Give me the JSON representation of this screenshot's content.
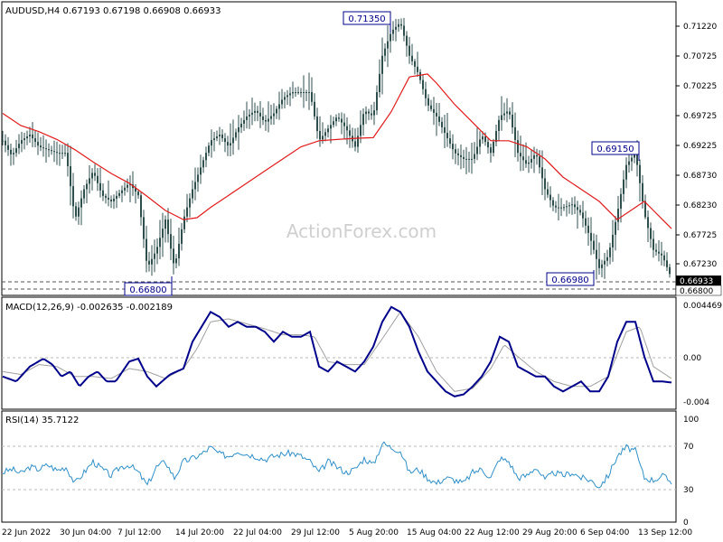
{
  "main": {
    "symbol_label": "AUDUSD,H4",
    "ohlc": "0.67193 0.67198 0.66908 0.66933",
    "watermark": "ActionForex.com",
    "price_ticks": [
      "0.71220",
      "0.70725",
      "0.70225",
      "0.69725",
      "0.69225",
      "0.68730",
      "0.68230",
      "0.67725",
      "0.67230"
    ],
    "current_price": "0.66933",
    "support_price": "0.66800",
    "annotations": [
      "0.71350",
      "0.69150",
      "0.66980",
      "0.66800"
    ],
    "colors": {
      "bars": "#2f4f4f",
      "ma": "#e01b1b",
      "box": "#00008b",
      "grid": "#b8b8b8"
    }
  },
  "macd_panel": {
    "label": "MACD(12,26,9) -0.002635 -0.002189",
    "ticks": [
      "0.004469",
      "0.00",
      "-0.004"
    ],
    "colors": {
      "macd": "#00008b",
      "signal": "#a0a0a0"
    }
  },
  "rsi_panel": {
    "label": "RSI(14) 35.7122",
    "ticks": [
      "100",
      "70",
      "30",
      "0"
    ],
    "color": "#2f8fc8"
  },
  "time_axis": [
    "22 Jun 2022",
    "30 Jun 04:00",
    "7 Jul 12:00",
    "14 Jul 20:00",
    "22 Jul 04:00",
    "29 Jul 12:00",
    "5 Aug 20:00",
    "15 Aug 04:00",
    "22 Aug 12:00",
    "29 Aug 20:00",
    "6 Sep 04:00",
    "13 Sep 12:00"
  ],
  "chart_data": [
    {
      "type": "candlestick",
      "title": "AUDUSD,H4",
      "ylim": [
        0.6668,
        0.714
      ],
      "price_path": [
        [
          0,
          0.692
        ],
        [
          10,
          0.6895
        ],
        [
          20,
          0.692
        ],
        [
          30,
          0.693
        ],
        [
          40,
          0.691
        ],
        [
          50,
          0.6905
        ],
        [
          60,
          0.69
        ],
        [
          70,
          0.69
        ],
        [
          80,
          0.679
        ],
        [
          90,
          0.684
        ],
        [
          100,
          0.687
        ],
        [
          110,
          0.683
        ],
        [
          120,
          0.682
        ],
        [
          130,
          0.6835
        ],
        [
          140,
          0.685
        ],
        [
          150,
          0.683
        ],
        [
          160,
          0.671
        ],
        [
          170,
          0.674
        ],
        [
          180,
          0.679
        ],
        [
          190,
          0.671
        ],
        [
          200,
          0.679
        ],
        [
          210,
          0.684
        ],
        [
          220,
          0.688
        ],
        [
          230,
          0.692
        ],
        [
          240,
          0.693
        ],
        [
          250,
          0.691
        ],
        [
          260,
          0.694
        ],
        [
          270,
          0.696
        ],
        [
          280,
          0.697
        ],
        [
          290,
          0.695
        ],
        [
          300,
          0.6965
        ],
        [
          310,
          0.699
        ],
        [
          320,
          0.7
        ],
        [
          330,
          0.7
        ],
        [
          340,
          0.7
        ],
        [
          350,
          0.692
        ],
        [
          360,
          0.694
        ],
        [
          370,
          0.696
        ],
        [
          380,
          0.694
        ],
        [
          390,
          0.691
        ],
        [
          400,
          0.697
        ],
        [
          410,
          0.696
        ],
        [
          420,
          0.706
        ],
        [
          430,
          0.71
        ],
        [
          440,
          0.7115
        ],
        [
          450,
          0.706
        ],
        [
          460,
          0.703
        ],
        [
          470,
          0.698
        ],
        [
          480,
          0.696
        ],
        [
          490,
          0.693
        ],
        [
          500,
          0.69
        ],
        [
          510,
          0.689
        ],
        [
          520,
          0.689
        ],
        [
          530,
          0.693
        ],
        [
          540,
          0.69
        ],
        [
          550,
          0.696
        ],
        [
          560,
          0.697
        ],
        [
          570,
          0.69
        ],
        [
          580,
          0.688
        ],
        [
          590,
          0.69
        ],
        [
          600,
          0.684
        ],
        [
          610,
          0.681
        ],
        [
          620,
          0.681
        ],
        [
          630,
          0.6815
        ],
        [
          640,
          0.68
        ],
        [
          650,
          0.676
        ],
        [
          660,
          0.671
        ],
        [
          670,
          0.673
        ],
        [
          680,
          0.68
        ],
        [
          690,
          0.688
        ],
        [
          700,
          0.69
        ],
        [
          710,
          0.68
        ],
        [
          720,
          0.674
        ],
        [
          730,
          0.673
        ],
        [
          740,
          0.6693
        ]
      ],
      "ma_path": [
        [
          0,
          0.6965
        ],
        [
          20,
          0.6945
        ],
        [
          40,
          0.6935
        ],
        [
          60,
          0.6922
        ],
        [
          80,
          0.6905
        ],
        [
          100,
          0.6885
        ],
        [
          120,
          0.6866
        ],
        [
          140,
          0.685
        ],
        [
          160,
          0.6828
        ],
        [
          180,
          0.6805
        ],
        [
          200,
          0.679
        ],
        [
          215,
          0.6793
        ],
        [
          230,
          0.681
        ],
        [
          250,
          0.683
        ],
        [
          270,
          0.685
        ],
        [
          290,
          0.687
        ],
        [
          310,
          0.689
        ],
        [
          330,
          0.691
        ],
        [
          350,
          0.692
        ],
        [
          370,
          0.6922
        ],
        [
          390,
          0.6924
        ],
        [
          410,
          0.6925
        ],
        [
          430,
          0.6968
        ],
        [
          450,
          0.7025
        ],
        [
          470,
          0.703
        ],
        [
          480,
          0.7015
        ],
        [
          500,
          0.698
        ],
        [
          520,
          0.695
        ],
        [
          540,
          0.692
        ],
        [
          560,
          0.692
        ],
        [
          580,
          0.691
        ],
        [
          600,
          0.689
        ],
        [
          620,
          0.686
        ],
        [
          640,
          0.684
        ],
        [
          660,
          0.682
        ],
        [
          680,
          0.679
        ],
        [
          700,
          0.681
        ],
        [
          710,
          0.682
        ],
        [
          720,
          0.6805
        ],
        [
          730,
          0.679
        ],
        [
          740,
          0.6775
        ]
      ],
      "levels": {
        "resistance_high": 0.7135,
        "swing_high": 0.6915,
        "swing_low": 0.6698,
        "support": 0.668,
        "current": 0.66933
      }
    },
    {
      "type": "line",
      "title": "MACD(12,26,9)",
      "ylim": [
        -0.0052,
        0.0058
      ],
      "macd": [
        [
          0,
          -0.002
        ],
        [
          15,
          -0.0025
        ],
        [
          30,
          -0.001
        ],
        [
          45,
          -0.0002
        ],
        [
          55,
          -0.0008
        ],
        [
          65,
          -0.002
        ],
        [
          75,
          -0.0015
        ],
        [
          85,
          -0.003
        ],
        [
          95,
          -0.002
        ],
        [
          105,
          -0.0015
        ],
        [
          115,
          -0.0025
        ],
        [
          125,
          -0.0025
        ],
        [
          140,
          -0.0005
        ],
        [
          150,
          -0.0002
        ],
        [
          160,
          -0.002
        ],
        [
          170,
          -0.003
        ],
        [
          185,
          -0.0018
        ],
        [
          200,
          -0.0012
        ],
        [
          210,
          0.0015
        ],
        [
          220,
          0.003
        ],
        [
          230,
          0.0045
        ],
        [
          240,
          0.004
        ],
        [
          250,
          0.003
        ],
        [
          260,
          0.0035
        ],
        [
          270,
          0.003
        ],
        [
          280,
          0.003
        ],
        [
          290,
          0.0025
        ],
        [
          300,
          0.0015
        ],
        [
          310,
          0.0025
        ],
        [
          320,
          0.002
        ],
        [
          330,
          0.002
        ],
        [
          340,
          0.0025
        ],
        [
          350,
          -0.001
        ],
        [
          360,
          -0.0015
        ],
        [
          370,
          -0.0005
        ],
        [
          380,
          -0.001
        ],
        [
          390,
          -0.0015
        ],
        [
          400,
          -0.0005
        ],
        [
          410,
          0.001
        ],
        [
          420,
          0.0035
        ],
        [
          430,
          0.005
        ],
        [
          440,
          0.0045
        ],
        [
          450,
          0.003
        ],
        [
          460,
          0.0005
        ],
        [
          470,
          -0.0015
        ],
        [
          480,
          -0.0025
        ],
        [
          490,
          -0.0035
        ],
        [
          500,
          -0.004
        ],
        [
          510,
          -0.0038
        ],
        [
          520,
          -0.003
        ],
        [
          530,
          -0.002
        ],
        [
          540,
          -0.0005
        ],
        [
          550,
          0.002
        ],
        [
          560,
          0.0015
        ],
        [
          570,
          -0.001
        ],
        [
          580,
          -0.0015
        ],
        [
          590,
          -0.002
        ],
        [
          600,
          -0.002
        ],
        [
          610,
          -0.003
        ],
        [
          620,
          -0.0035
        ],
        [
          630,
          -0.003
        ],
        [
          640,
          -0.0025
        ],
        [
          650,
          -0.0035
        ],
        [
          660,
          -0.0035
        ],
        [
          670,
          -0.002
        ],
        [
          680,
          0.0015
        ],
        [
          690,
          0.0035
        ],
        [
          700,
          0.0035
        ],
        [
          710,
          0.0
        ],
        [
          720,
          -0.0025
        ],
        [
          730,
          -0.0025
        ],
        [
          740,
          -0.0026
        ]
      ],
      "signal": [
        [
          0,
          -0.0015
        ],
        [
          20,
          -0.0018
        ],
        [
          40,
          -0.0008
        ],
        [
          60,
          -0.001
        ],
        [
          80,
          -0.002
        ],
        [
          100,
          -0.002
        ],
        [
          120,
          -0.0022
        ],
        [
          140,
          -0.0012
        ],
        [
          160,
          -0.0015
        ],
        [
          180,
          -0.0022
        ],
        [
          200,
          -0.0012
        ],
        [
          215,
          0.0008
        ],
        [
          230,
          0.0035
        ],
        [
          250,
          0.0038
        ],
        [
          270,
          0.0033
        ],
        [
          290,
          0.0028
        ],
        [
          310,
          0.0022
        ],
        [
          330,
          0.0022
        ],
        [
          345,
          0.002
        ],
        [
          360,
          -0.0005
        ],
        [
          380,
          -0.0008
        ],
        [
          400,
          -0.0008
        ],
        [
          420,
          0.0018
        ],
        [
          440,
          0.0045
        ],
        [
          460,
          0.002
        ],
        [
          480,
          -0.0015
        ],
        [
          500,
          -0.0035
        ],
        [
          520,
          -0.0032
        ],
        [
          540,
          -0.0012
        ],
        [
          555,
          0.0012
        ],
        [
          570,
          0.0
        ],
        [
          590,
          -0.0015
        ],
        [
          610,
          -0.0025
        ],
        [
          630,
          -0.003
        ],
        [
          650,
          -0.003
        ],
        [
          670,
          -0.002
        ],
        [
          690,
          0.0025
        ],
        [
          705,
          0.003
        ],
        [
          720,
          -0.001
        ],
        [
          740,
          -0.0022
        ]
      ]
    },
    {
      "type": "line",
      "title": "RSI(14)",
      "ylim": [
        0,
        100
      ],
      "values": [
        [
          0,
          45
        ],
        [
          10,
          48
        ],
        [
          20,
          44
        ],
        [
          30,
          50
        ],
        [
          40,
          48
        ],
        [
          50,
          52
        ],
        [
          60,
          47
        ],
        [
          70,
          50
        ],
        [
          80,
          35
        ],
        [
          90,
          45
        ],
        [
          100,
          55
        ],
        [
          110,
          48
        ],
        [
          120,
          42
        ],
        [
          130,
          50
        ],
        [
          140,
          52
        ],
        [
          150,
          45
        ],
        [
          160,
          33
        ],
        [
          170,
          50
        ],
        [
          180,
          55
        ],
        [
          190,
          40
        ],
        [
          200,
          55
        ],
        [
          210,
          58
        ],
        [
          220,
          62
        ],
        [
          230,
          68
        ],
        [
          240,
          62
        ],
        [
          250,
          60
        ],
        [
          260,
          65
        ],
        [
          270,
          62
        ],
        [
          280,
          60
        ],
        [
          290,
          57
        ],
        [
          300,
          60
        ],
        [
          310,
          62
        ],
        [
          320,
          63
        ],
        [
          330,
          60
        ],
        [
          340,
          55
        ],
        [
          350,
          45
        ],
        [
          360,
          55
        ],
        [
          370,
          50
        ],
        [
          380,
          45
        ],
        [
          390,
          48
        ],
        [
          400,
          58
        ],
        [
          410,
          52
        ],
        [
          420,
          72
        ],
        [
          430,
          68
        ],
        [
          440,
          65
        ],
        [
          450,
          45
        ],
        [
          460,
          48
        ],
        [
          470,
          40
        ],
        [
          480,
          35
        ],
        [
          490,
          40
        ],
        [
          500,
          38
        ],
        [
          510,
          35
        ],
        [
          520,
          45
        ],
        [
          530,
          48
        ],
        [
          540,
          40
        ],
        [
          550,
          58
        ],
        [
          560,
          55
        ],
        [
          570,
          40
        ],
        [
          580,
          42
        ],
        [
          590,
          50
        ],
        [
          600,
          38
        ],
        [
          610,
          45
        ],
        [
          620,
          42
        ],
        [
          630,
          45
        ],
        [
          640,
          40
        ],
        [
          650,
          38
        ],
        [
          660,
          32
        ],
        [
          670,
          42
        ],
        [
          680,
          60
        ],
        [
          690,
          68
        ],
        [
          700,
          65
        ],
        [
          710,
          40
        ],
        [
          720,
          38
        ],
        [
          730,
          42
        ],
        [
          740,
          36
        ]
      ]
    }
  ]
}
